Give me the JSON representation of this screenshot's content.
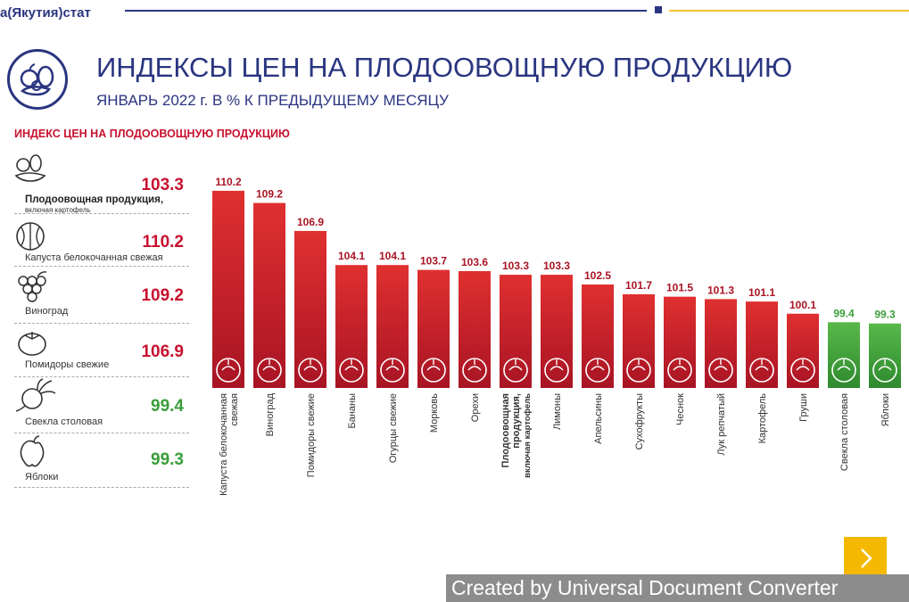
{
  "header": {
    "brand": "а(Якутия)стат",
    "title": "ИНДЕКСЫ ЦЕН НА ПЛОДООВОЩНУЮ ПРОДУКЦИЮ",
    "subtitle": "ЯНВАРЬ 2022 г. В % К ПРЕДЫДУЩЕМУ МЕСЯЦУ",
    "accent_blue": "#2a3580",
    "accent_yellow": "#f2c530"
  },
  "sidebar": {
    "title": "ИНДЕКС ЦЕН НА ПЛОДООВОЩНУЮ ПРОДУКЦИЮ",
    "items": [
      {
        "label": "Плодоовощная продукция,",
        "sublabel": "включая картофель",
        "value": "103.3",
        "icon": "fruit-basket-icon",
        "color": "#c8102e"
      },
      {
        "label": "Капуста белокочанная свежая",
        "value": "110.2",
        "icon": "cabbage-icon",
        "color": "#c8102e"
      },
      {
        "label": "Виноград",
        "value": "109.2",
        "icon": "grapes-icon",
        "color": "#c8102e"
      },
      {
        "label": "Помидоры свежие",
        "value": "106.9",
        "icon": "tomato-icon",
        "color": "#c8102e"
      },
      {
        "label": "Свекла столовая",
        "value": "99.4",
        "icon": "beet-icon",
        "color": "#3a9e3a"
      },
      {
        "label": "Яблоки",
        "value": "99.3",
        "icon": "apple-icon",
        "color": "#3a9e3a"
      }
    ]
  },
  "chart_data": {
    "type": "bar",
    "title": "ИНДЕКС ЦЕН НА ПЛОДООВОЩНУЮ ПРОДУКЦИЮ",
    "categories": [
      [
        "Капуста белокочанная",
        "свежая"
      ],
      [
        "Виноград"
      ],
      [
        "Помидоры свежие"
      ],
      [
        "Бананы"
      ],
      [
        "Огурцы свежие"
      ],
      [
        "Морковь"
      ],
      [
        "Орехи"
      ],
      [
        "Плодоовощная",
        "продукция,",
        "включая картофель"
      ],
      [
        "Лимоны"
      ],
      [
        "Апельсины"
      ],
      [
        "Сухофрукты"
      ],
      [
        "Чеснок"
      ],
      [
        "Лук репчатый"
      ],
      [
        "Картофель"
      ],
      [
        "Груши"
      ],
      [
        "Свекла столовая"
      ],
      [
        "Яблоки"
      ]
    ],
    "values": [
      110.2,
      109.2,
      106.9,
      104.1,
      104.1,
      103.7,
      103.6,
      103.3,
      103.3,
      102.5,
      101.7,
      101.5,
      101.3,
      101.1,
      100.1,
      99.4,
      99.3
    ],
    "value_labels": [
      "110.2",
      "109.2",
      "106.9",
      "104.1",
      "104.1",
      "103.7",
      "103.6",
      "103.3",
      "103.3",
      "102.5",
      "101.7",
      "101.5",
      "101.3",
      "101.1",
      "100.1",
      "99.4",
      "99.3"
    ],
    "icons": [
      "cabbage-icon",
      "grapes-icon",
      "tomato-icon",
      "banana-icon",
      "cucumber-icon",
      "carrot-icon",
      "nut-icon",
      "fruit-basket-icon",
      "lemon-icon",
      "orange-icon",
      "dried-fruit-icon",
      "garlic-icon",
      "onion-icon",
      "potato-icon",
      "pear-icon",
      "beet-icon",
      "apple-icon"
    ],
    "ylim": [
      94,
      111
    ],
    "xlabel": "",
    "ylabel": "",
    "grid": false,
    "color_above_100": "#c41f2c",
    "color_below_100": "#3aa13a"
  },
  "footer": {
    "next_label": "›",
    "watermark": "Created by Universal Document Converter"
  }
}
